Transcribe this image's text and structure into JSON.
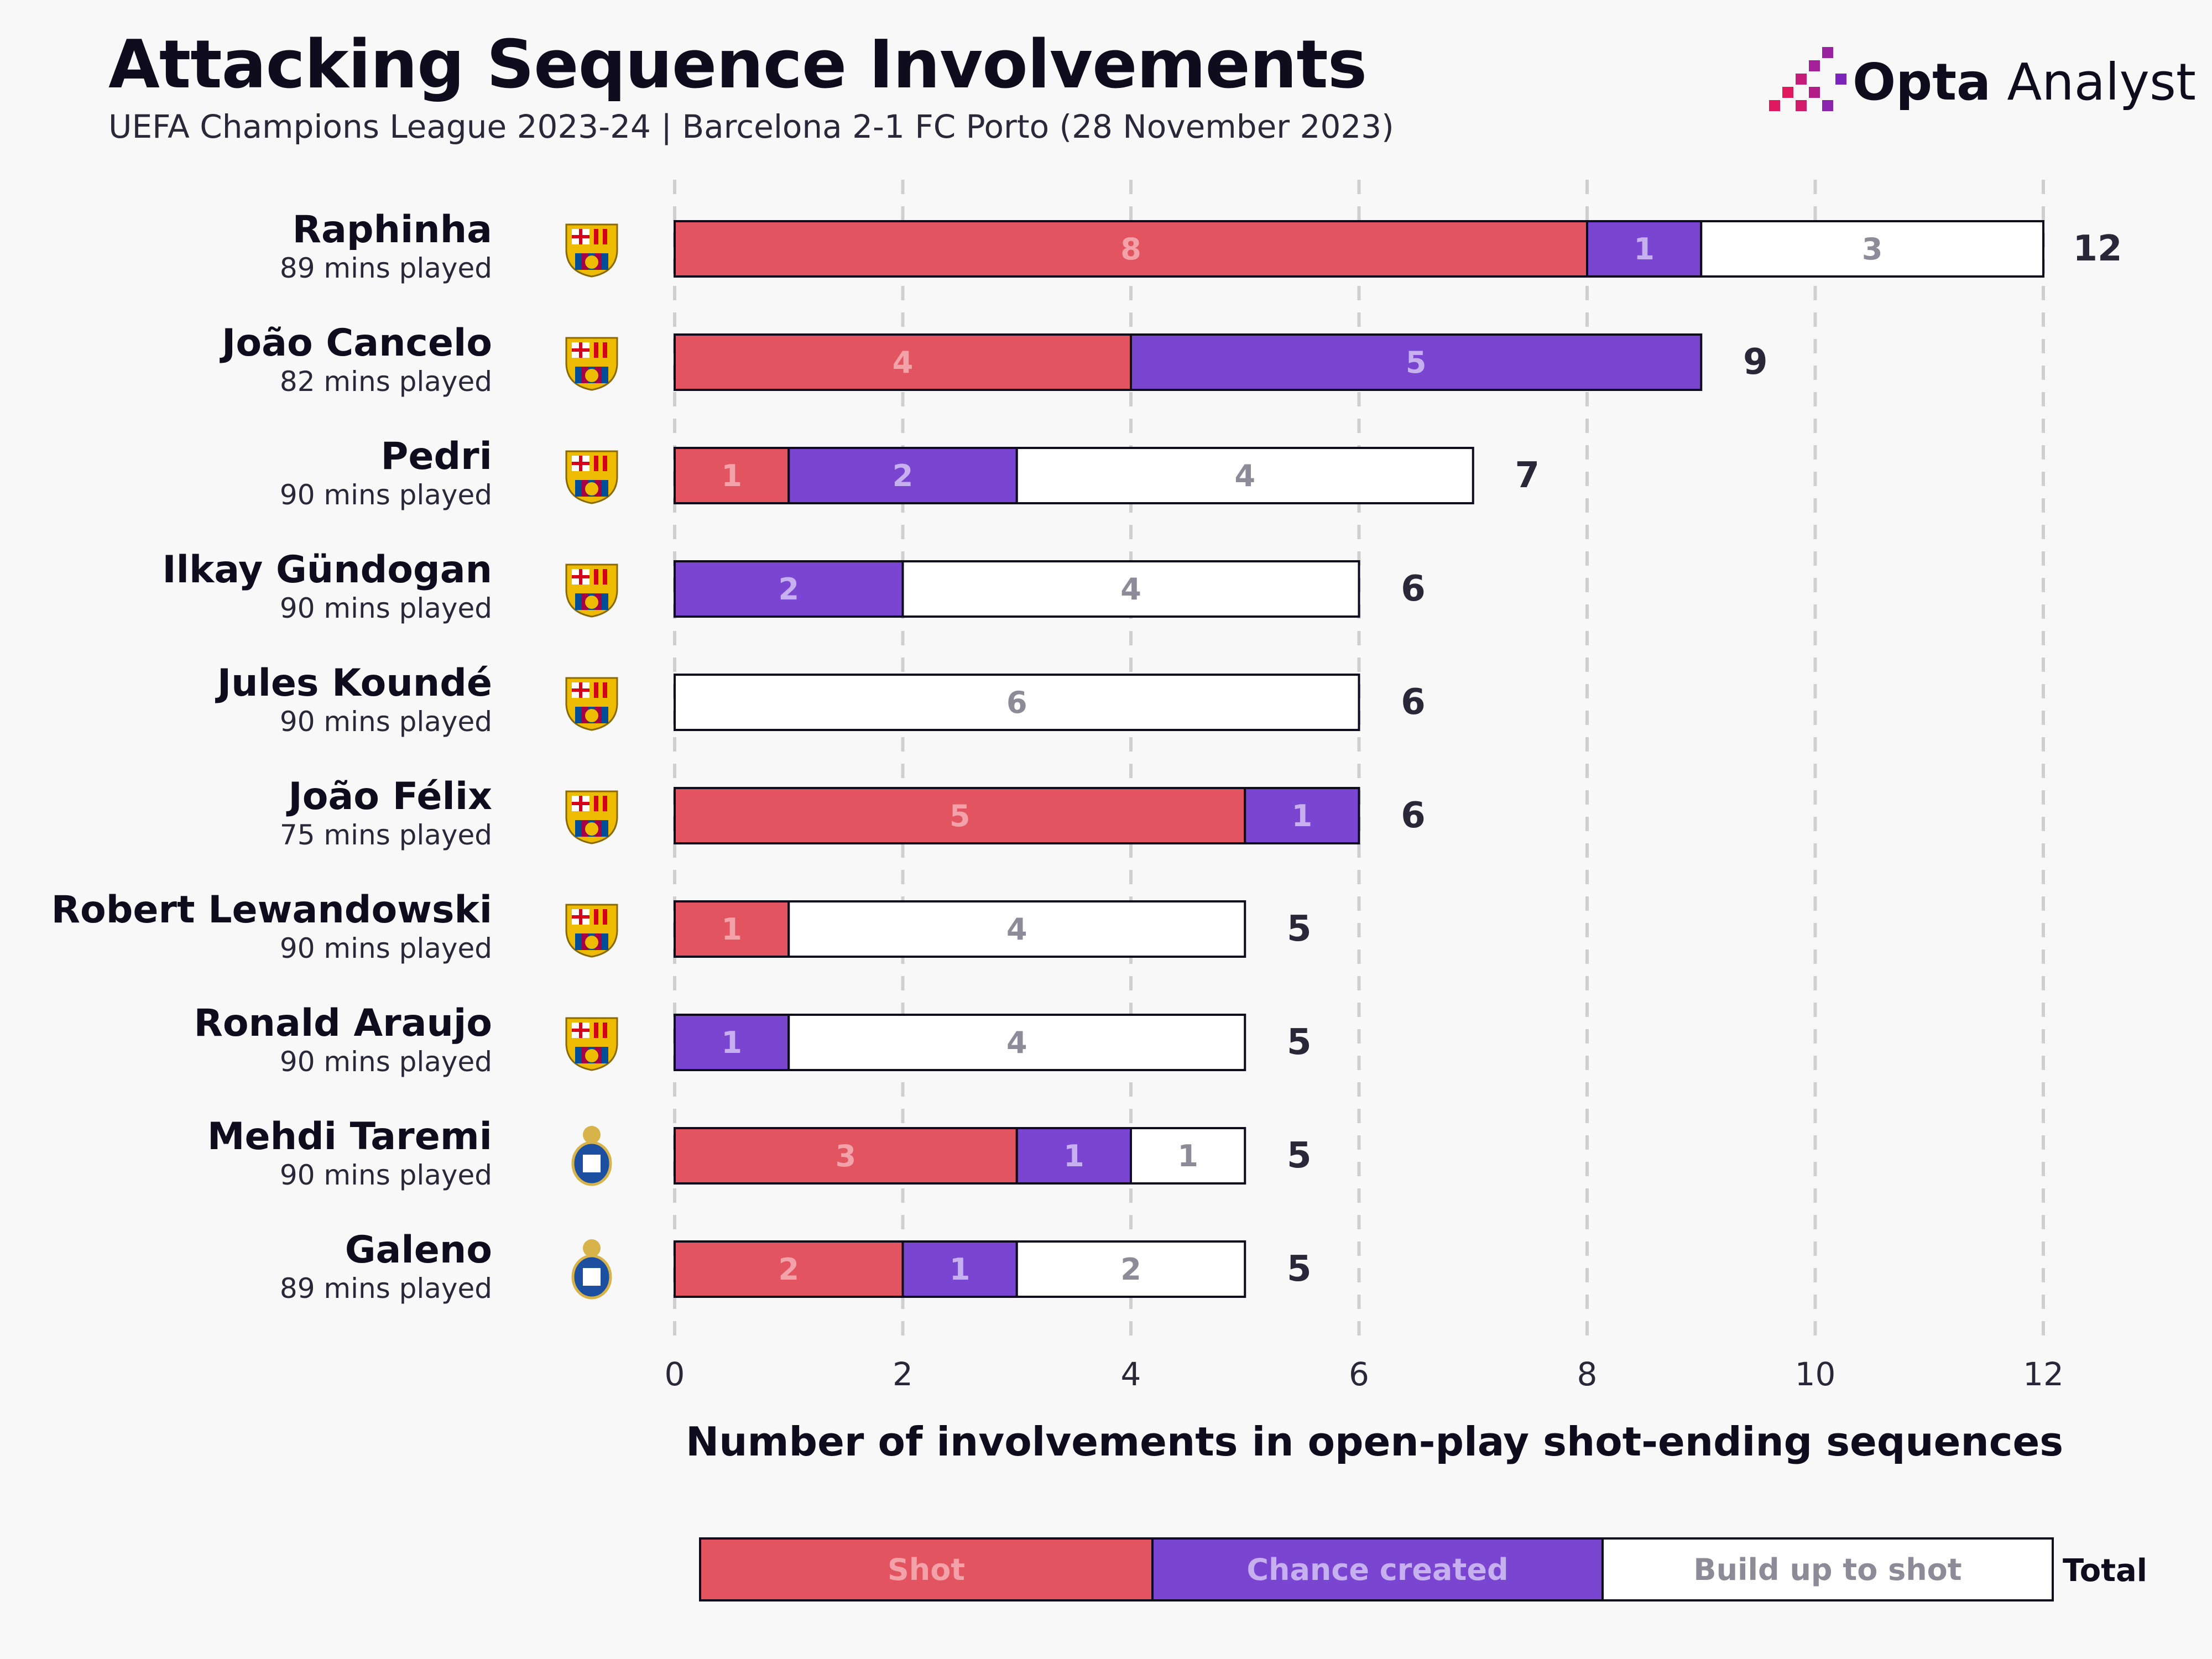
{
  "header": {
    "title": "Attacking Sequence Involvements",
    "subtitle": "UEFA Champions League 2023-24 | Barcelona 2-1 FC Porto (28 November 2023)"
  },
  "brand": {
    "name_bold": "Opta",
    "name_rest": " Analyst",
    "accent": "#e0185e"
  },
  "colors": {
    "shot": "#e2545f",
    "chance": "#7a45d0",
    "buildup": "#ffffff",
    "shot_text": "#f2a2a8",
    "chance_text": "#c6b0ef",
    "buildup_text": "#8d8b97",
    "grid": "#cfcfcf",
    "barcelona_badge": "#a50044",
    "porto_badge": "#1c4fa0"
  },
  "legend": {
    "shot_label": "Shot",
    "chance_label": "Chance created",
    "buildup_label": "Build up to shot",
    "total_label": "Total"
  },
  "chart_data": {
    "type": "bar",
    "orientation": "horizontal",
    "stacked": true,
    "xlabel": "Number of involvements in open-play shot-ending sequences",
    "xlim": [
      0,
      12
    ],
    "xticks": [
      0,
      2,
      4,
      6,
      8,
      10,
      12
    ],
    "grid": "vertical dashed",
    "categories": [
      "Raphinha",
      "João Cancelo",
      "Pedri",
      "Ilkay Gündogan",
      "Jules Koundé",
      "João Félix",
      "Robert Lewandowski",
      "Ronald Araujo",
      "Mehdi Taremi",
      "Galeno"
    ],
    "minutes": [
      "89 mins played",
      "82 mins played",
      "90 mins played",
      "90 mins played",
      "90 mins played",
      "75 mins played",
      "90 mins played",
      "90 mins played",
      "90 mins played",
      "89 mins played"
    ],
    "clubs": [
      "barcelona",
      "barcelona",
      "barcelona",
      "barcelona",
      "barcelona",
      "barcelona",
      "barcelona",
      "barcelona",
      "porto",
      "porto"
    ],
    "series": [
      {
        "name": "Shot",
        "values": [
          8,
          4,
          1,
          0,
          0,
          5,
          1,
          0,
          3,
          2
        ]
      },
      {
        "name": "Chance created",
        "values": [
          1,
          5,
          2,
          2,
          0,
          1,
          0,
          1,
          1,
          1
        ]
      },
      {
        "name": "Build up to shot",
        "values": [
          3,
          0,
          4,
          4,
          6,
          0,
          4,
          4,
          1,
          2
        ]
      }
    ],
    "totals": [
      12,
      9,
      7,
      6,
      6,
      6,
      5,
      5,
      5,
      5
    ],
    "legend_position": "bottom"
  }
}
